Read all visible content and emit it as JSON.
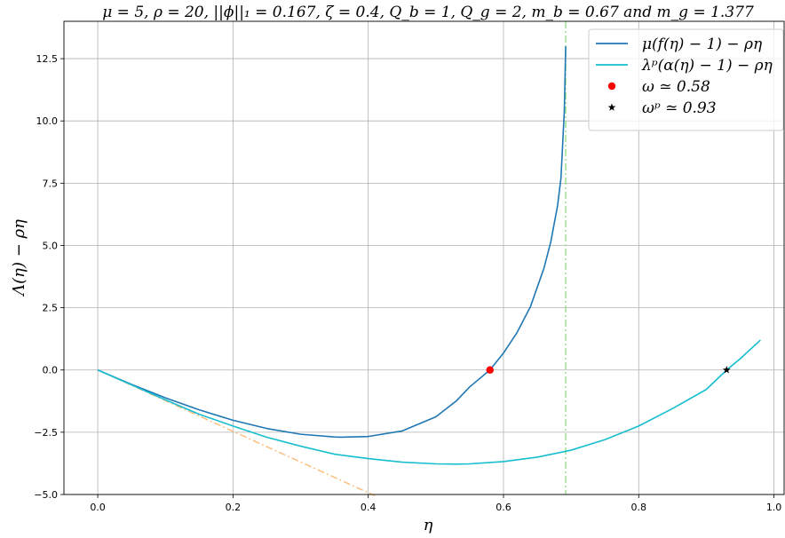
{
  "chart_data": {
    "type": "line",
    "title": "μ = 5,  ρ = 20,  ||ϕ||₁ = 0.167,  ζ = 0.4,  Q_b = 1,  Q_g = 2,  m_b = 0.67  and  m_g = 1.377",
    "xlabel": "η",
    "ylabel": "Λ(η) − ρη",
    "xlim": [
      -0.05,
      1.015
    ],
    "ylim": [
      -5.0,
      14.0
    ],
    "xticks": [
      0.0,
      0.2,
      0.4,
      0.6,
      0.8,
      1.0
    ],
    "xtick_labels": [
      "0.0",
      "0.2",
      "0.4",
      "0.6",
      "0.8",
      "1.0"
    ],
    "yticks": [
      -5.0,
      -2.5,
      0.0,
      2.5,
      5.0,
      7.5,
      10.0,
      12.5
    ],
    "ytick_labels": [
      "−5.0",
      "−2.5",
      "0.0",
      "2.5",
      "5.0",
      "7.5",
      "10.0",
      "12.5"
    ],
    "grid": true,
    "legend_position": "top-right",
    "series": [
      {
        "name": "μ(f(η) − 1) − ρη",
        "color": "#1f77b4",
        "style": "solid",
        "x": [
          0.0,
          0.05,
          0.1,
          0.15,
          0.2,
          0.25,
          0.3,
          0.35,
          0.36,
          0.4,
          0.45,
          0.5,
          0.53,
          0.55,
          0.58,
          0.6,
          0.62,
          0.64,
          0.66,
          0.67,
          0.68,
          0.685,
          0.69,
          0.692
        ],
        "y": [
          0.0,
          -0.58,
          -1.12,
          -1.6,
          -2.02,
          -2.35,
          -2.58,
          -2.69,
          -2.7,
          -2.67,
          -2.45,
          -1.88,
          -1.25,
          -0.68,
          0.0,
          0.68,
          1.5,
          2.55,
          4.1,
          5.15,
          6.6,
          7.7,
          10.4,
          13.0
        ]
      },
      {
        "name": "λᵖ(α(η) − 1) − ρη",
        "color": "#17becf",
        "style": "solid",
        "x": [
          0.0,
          0.05,
          0.1,
          0.15,
          0.2,
          0.25,
          0.3,
          0.35,
          0.4,
          0.45,
          0.5,
          0.53,
          0.55,
          0.6,
          0.65,
          0.7,
          0.75,
          0.8,
          0.85,
          0.9,
          0.93,
          0.95,
          0.98
        ],
        "y": [
          0.0,
          -0.6,
          -1.2,
          -1.78,
          -2.25,
          -2.7,
          -3.06,
          -3.38,
          -3.56,
          -3.7,
          -3.77,
          -3.78,
          -3.77,
          -3.68,
          -3.5,
          -3.22,
          -2.8,
          -2.25,
          -1.55,
          -0.78,
          0.0,
          0.45,
          1.2
        ]
      }
    ],
    "reference_lines": [
      {
        "kind": "diagonal",
        "color": "#ffbb78",
        "style": "dashdot",
        "x": [
          0.0,
          0.41
        ],
        "y": [
          0.0,
          -5.05
        ]
      },
      {
        "kind": "vertical",
        "color": "#98df8a",
        "style": "dashdot",
        "x_value": 0.692
      }
    ],
    "markers": [
      {
        "name": "ω ≃ 0.58",
        "x": 0.58,
        "y": 0.0,
        "color": "#ff0000",
        "shape": "circle"
      },
      {
        "name": "ωᵖ ≃ 0.93",
        "x": 0.93,
        "y": 0.0,
        "color": "#000000",
        "shape": "star"
      }
    ]
  }
}
